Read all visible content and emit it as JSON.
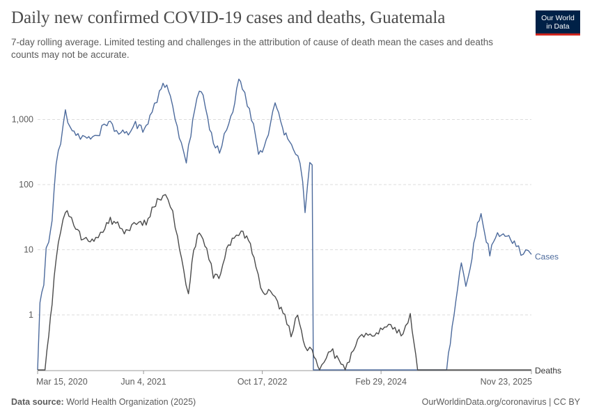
{
  "header": {
    "title": "Daily new confirmed COVID-19 cases and deaths, Guatemala",
    "subtitle": "7-day rolling average. Limited testing and challenges in the attribution of cause of death mean the cases and deaths counts may not be accurate.",
    "logo_line1": "Our World",
    "logo_line2": "in Data"
  },
  "footer": {
    "source_label": "Data source:",
    "source_value": "World Health Organization (2025)",
    "link_text": "OurWorldinData.org/coronavirus | CC BY"
  },
  "colors": {
    "cases": "#4c6a9c",
    "deaths": "#4a4a4a",
    "grid": "#dddddd",
    "axis": "#999999"
  },
  "chart_data": {
    "type": "line",
    "title": "Daily new confirmed COVID-19 cases and deaths, Guatemala",
    "subtitle": "7-day rolling average. Limited testing and challenges in the attribution of cause of death mean the cases and deaths counts may not be accurate.",
    "xlabel": "",
    "ylabel": "",
    "y_scale": "log",
    "y_ticks": [
      1,
      10,
      100,
      1000
    ],
    "y_tick_labels": [
      "1",
      "10",
      "100",
      "1,000"
    ],
    "x_range": [
      "2020-03-15",
      "2025-11-23"
    ],
    "x_ticks": [
      "2020-03-15",
      "2021-06-04",
      "2022-10-17",
      "2024-02-29",
      "2025-11-23"
    ],
    "x_tick_labels": [
      "Mar 15, 2020",
      "Jun 4, 2021",
      "Oct 17, 2022",
      "Feb 29, 2024",
      "Nov 23, 2025"
    ],
    "grid": "horizontal",
    "legend": "inline labels at right end of lines",
    "series": [
      {
        "name": "Cases",
        "points": [
          [
            "2020-03-15",
            0
          ],
          [
            "2020-03-25",
            1.5
          ],
          [
            "2020-04-10",
            3
          ],
          [
            "2020-04-20",
            10
          ],
          [
            "2020-05-01",
            12
          ],
          [
            "2020-05-15",
            30
          ],
          [
            "2020-06-01",
            220
          ],
          [
            "2020-06-20",
            450
          ],
          [
            "2020-07-01",
            800
          ],
          [
            "2020-07-10",
            1500
          ],
          [
            "2020-07-20",
            900
          ],
          [
            "2020-08-01",
            800
          ],
          [
            "2020-08-15",
            650
          ],
          [
            "2020-09-01",
            550
          ],
          [
            "2020-10-01",
            550
          ],
          [
            "2020-11-01",
            500
          ],
          [
            "2020-12-01",
            600
          ],
          [
            "2020-12-20",
            900
          ],
          [
            "2021-01-01",
            800
          ],
          [
            "2021-01-15",
            1000
          ],
          [
            "2021-02-01",
            700
          ],
          [
            "2021-03-01",
            600
          ],
          [
            "2021-04-01",
            650
          ],
          [
            "2021-05-01",
            850
          ],
          [
            "2021-06-01",
            700
          ],
          [
            "2021-06-15",
            800
          ],
          [
            "2021-07-01",
            1100
          ],
          [
            "2021-07-20",
            1600
          ],
          [
            "2021-08-10",
            2600
          ],
          [
            "2021-08-25",
            3500
          ],
          [
            "2021-09-10",
            3000
          ],
          [
            "2021-09-25",
            2200
          ],
          [
            "2021-10-15",
            1000
          ],
          [
            "2021-11-10",
            400
          ],
          [
            "2021-12-01",
            220
          ],
          [
            "2021-12-20",
            600
          ],
          [
            "2022-01-05",
            1500
          ],
          [
            "2022-01-25",
            3000
          ],
          [
            "2022-02-10",
            2500
          ],
          [
            "2022-03-01",
            1000
          ],
          [
            "2022-03-25",
            450
          ],
          [
            "2022-04-20",
            330
          ],
          [
            "2022-05-20",
            700
          ],
          [
            "2022-06-15",
            1300
          ],
          [
            "2022-07-01",
            2800
          ],
          [
            "2022-07-10",
            4600
          ],
          [
            "2022-07-25",
            3000
          ],
          [
            "2022-08-15",
            1800
          ],
          [
            "2022-09-10",
            800
          ],
          [
            "2022-10-01",
            320
          ],
          [
            "2022-10-25",
            350
          ],
          [
            "2022-11-20",
            800
          ],
          [
            "2022-12-10",
            1900
          ],
          [
            "2022-12-25",
            1300
          ],
          [
            "2023-01-10",
            700
          ],
          [
            "2023-02-01",
            550
          ],
          [
            "2023-02-25",
            350
          ],
          [
            "2023-03-25",
            230
          ],
          [
            "2023-04-05",
            120
          ],
          [
            "2023-04-15",
            40
          ],
          [
            "2023-04-25",
            100
          ],
          [
            "2023-05-05",
            200
          ],
          [
            "2023-05-15",
            200
          ],
          [
            "2023-05-20",
            0
          ],
          [
            "2024-01-01",
            0
          ],
          [
            "2024-12-01",
            0
          ],
          [
            "2025-01-01",
            1
          ],
          [
            "2025-02-01",
            7
          ],
          [
            "2025-02-20",
            3
          ],
          [
            "2025-03-10",
            5
          ],
          [
            "2025-03-25",
            12
          ],
          [
            "2025-04-10",
            25
          ],
          [
            "2025-04-25",
            35
          ],
          [
            "2025-05-10",
            18
          ],
          [
            "2025-06-01",
            9
          ],
          [
            "2025-06-25",
            16
          ],
          [
            "2025-07-20",
            18
          ],
          [
            "2025-08-20",
            15
          ],
          [
            "2025-09-20",
            12
          ],
          [
            "2025-10-20",
            8
          ],
          [
            "2025-11-10",
            10
          ],
          [
            "2025-11-23",
            8
          ]
        ]
      },
      {
        "name": "Deaths",
        "points": [
          [
            "2020-03-15",
            0
          ],
          [
            "2020-04-15",
            0
          ],
          [
            "2020-05-01",
            0.5
          ],
          [
            "2020-05-15",
            1.5
          ],
          [
            "2020-06-01",
            8
          ],
          [
            "2020-06-20",
            20
          ],
          [
            "2020-07-10",
            40
          ],
          [
            "2020-07-25",
            35
          ],
          [
            "2020-08-15",
            25
          ],
          [
            "2020-09-15",
            15
          ],
          [
            "2020-10-15",
            14
          ],
          [
            "2020-11-15",
            15
          ],
          [
            "2020-12-15",
            20
          ],
          [
            "2021-01-15",
            28
          ],
          [
            "2021-02-15",
            25
          ],
          [
            "2021-03-15",
            18
          ],
          [
            "2021-04-15",
            22
          ],
          [
            "2021-05-15",
            28
          ],
          [
            "2021-06-15",
            25
          ],
          [
            "2021-07-10",
            40
          ],
          [
            "2021-08-01",
            55
          ],
          [
            "2021-08-25",
            65
          ],
          [
            "2021-09-15",
            60
          ],
          [
            "2021-10-05",
            40
          ],
          [
            "2021-10-25",
            15
          ],
          [
            "2021-11-20",
            5
          ],
          [
            "2021-12-10",
            2
          ],
          [
            "2022-01-01",
            10
          ],
          [
            "2022-01-25",
            20
          ],
          [
            "2022-02-25",
            10
          ],
          [
            "2022-03-25",
            4
          ],
          [
            "2022-04-25",
            4
          ],
          [
            "2022-05-20",
            10
          ],
          [
            "2022-06-20",
            15
          ],
          [
            "2022-07-20",
            18
          ],
          [
            "2022-08-20",
            15
          ],
          [
            "2022-09-20",
            6
          ],
          [
            "2022-10-20",
            2
          ],
          [
            "2022-11-20",
            2.5
          ],
          [
            "2022-12-20",
            1.5
          ],
          [
            "2023-01-20",
            1
          ],
          [
            "2023-02-15",
            0.5
          ],
          [
            "2023-03-15",
            1
          ],
          [
            "2023-04-15",
            0.3
          ],
          [
            "2023-05-15",
            0.3
          ],
          [
            "2023-06-15",
            0
          ],
          [
            "2023-08-01",
            0.3
          ],
          [
            "2023-10-01",
            0
          ],
          [
            "2023-12-01",
            0.5
          ],
          [
            "2024-02-01",
            0.5
          ],
          [
            "2024-04-01",
            0.7
          ],
          [
            "2024-06-01",
            0.5
          ],
          [
            "2024-07-01",
            1
          ],
          [
            "2024-08-01",
            0
          ],
          [
            "2025-11-23",
            0
          ]
        ]
      }
    ]
  }
}
